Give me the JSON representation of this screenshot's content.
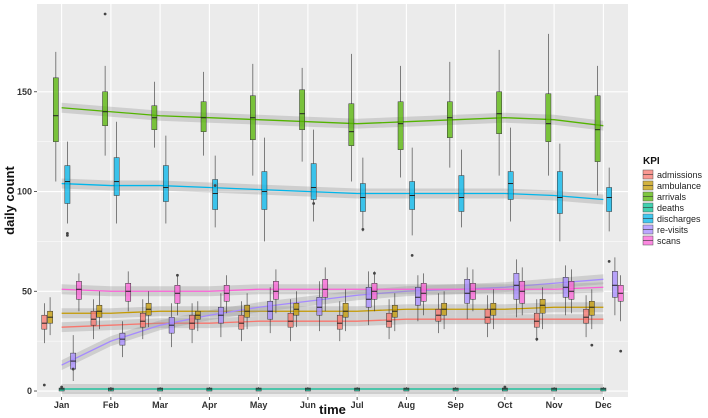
{
  "chart_data": {
    "type": "box",
    "title": "",
    "xlabel": "time",
    "ylabel": "daily count",
    "ylim": [
      -3,
      194
    ],
    "y_ticks": [
      0,
      50,
      100,
      150
    ],
    "categories": [
      "Jan",
      "Feb",
      "Mar",
      "Apr",
      "May",
      "Jun",
      "Jul",
      "Aug",
      "Sep",
      "Oct",
      "Nov",
      "Dec"
    ],
    "legend": {
      "title": "KPI",
      "position": "right"
    },
    "grid": true,
    "series": [
      {
        "name": "admissions",
        "color": "#F8766D",
        "boxes": [
          {
            "q1": 31,
            "median": 34,
            "q3": 38,
            "whisker_low": 24,
            "whisker_high": 44
          },
          {
            "q1": 33,
            "median": 36,
            "q3": 40,
            "whisker_low": 26,
            "whisker_high": 46
          },
          {
            "q1": 32,
            "median": 35,
            "q3": 39,
            "whisker_low": 26,
            "whisker_high": 46
          },
          {
            "q1": 31,
            "median": 34,
            "q3": 38,
            "whisker_low": 24,
            "whisker_high": 44
          },
          {
            "q1": 31,
            "median": 34,
            "q3": 38,
            "whisker_low": 25,
            "whisker_high": 45
          },
          {
            "q1": 32,
            "median": 35,
            "q3": 39,
            "whisker_low": 25,
            "whisker_high": 46
          },
          {
            "q1": 31,
            "median": 34,
            "q3": 38,
            "whisker_low": 25,
            "whisker_high": 45
          },
          {
            "q1": 32,
            "median": 35,
            "q3": 39,
            "whisker_low": 26,
            "whisker_high": 46
          },
          {
            "q1": 35,
            "median": 38,
            "q3": 41,
            "whisker_low": 29,
            "whisker_high": 49
          },
          {
            "q1": 34,
            "median": 37,
            "q3": 41,
            "whisker_low": 27,
            "whisker_high": 48
          },
          {
            "q1": 32,
            "median": 35,
            "q3": 39,
            "whisker_low": 25,
            "whisker_high": 46
          },
          {
            "q1": 34,
            "median": 37,
            "q3": 41,
            "whisker_low": 27,
            "whisker_high": 48
          }
        ],
        "trend": [
          32,
          33,
          34,
          34,
          35,
          35,
          35,
          36,
          36,
          36,
          36,
          36
        ]
      },
      {
        "name": "ambulance",
        "color": "#C49A00",
        "boxes": [
          {
            "q1": 34,
            "median": 37,
            "q3": 40,
            "whisker_low": 28,
            "whisker_high": 47
          },
          {
            "q1": 37,
            "median": 40,
            "q3": 43,
            "whisker_low": 31,
            "whisker_high": 50
          },
          {
            "q1": 38,
            "median": 41,
            "q3": 44,
            "whisker_low": 32,
            "whisker_high": 50
          },
          {
            "q1": 36,
            "median": 38,
            "q3": 40,
            "whisker_low": 30,
            "whisker_high": 45
          },
          {
            "q1": 37,
            "median": 40,
            "q3": 43,
            "whisker_low": 31,
            "whisker_high": 49
          },
          {
            "q1": 38,
            "median": 41,
            "q3": 44,
            "whisker_low": 32,
            "whisker_high": 50
          },
          {
            "q1": 37,
            "median": 40,
            "q3": 44,
            "whisker_low": 30,
            "whisker_high": 51
          },
          {
            "q1": 37,
            "median": 40,
            "q3": 43,
            "whisker_low": 30,
            "whisker_high": 49
          },
          {
            "q1": 38,
            "median": 41,
            "q3": 44,
            "whisker_low": 31,
            "whisker_high": 50
          },
          {
            "q1": 38,
            "median": 41,
            "q3": 44,
            "whisker_low": 31,
            "whisker_high": 51
          },
          {
            "q1": 39,
            "median": 43,
            "q3": 46,
            "whisker_low": 31,
            "whisker_high": 52
          },
          {
            "q1": 38,
            "median": 42,
            "q3": 45,
            "whisker_low": 31,
            "whisker_high": 51
          }
        ],
        "trend": [
          39,
          39,
          40,
          40,
          40,
          40,
          40,
          41,
          41,
          41,
          42,
          42
        ]
      },
      {
        "name": "arrivals",
        "color": "#53B400",
        "boxes": [
          {
            "q1": 125,
            "median": 138,
            "q3": 157,
            "whisker_low": 105,
            "whisker_high": 170
          },
          {
            "q1": 133,
            "median": 140,
            "q3": 150,
            "whisker_low": 118,
            "whisker_high": 163
          },
          {
            "q1": 131,
            "median": 137,
            "q3": 143,
            "whisker_low": 122,
            "whisker_high": 155
          },
          {
            "q1": 130,
            "median": 137,
            "q3": 145,
            "whisker_low": 118,
            "whisker_high": 160
          },
          {
            "q1": 126,
            "median": 137,
            "q3": 148,
            "whisker_low": 108,
            "whisker_high": 164
          },
          {
            "q1": 131,
            "median": 139,
            "q3": 151,
            "whisker_low": 115,
            "whisker_high": 162
          },
          {
            "q1": 123,
            "median": 130,
            "q3": 144,
            "whisker_low": 105,
            "whisker_high": 169
          },
          {
            "q1": 121,
            "median": 134,
            "q3": 145,
            "whisker_low": 107,
            "whisker_high": 163
          },
          {
            "q1": 127,
            "median": 137,
            "q3": 145,
            "whisker_low": 112,
            "whisker_high": 165
          },
          {
            "q1": 129,
            "median": 139,
            "q3": 150,
            "whisker_low": 108,
            "whisker_high": 171
          },
          {
            "q1": 125,
            "median": 134,
            "q3": 149,
            "whisker_low": 108,
            "whisker_high": 179
          },
          {
            "q1": 115,
            "median": 131,
            "q3": 148,
            "whisker_low": 98,
            "whisker_high": 163
          }
        ],
        "trend": [
          142,
          140,
          138,
          137,
          136,
          135,
          134,
          135,
          136,
          137,
          136,
          133
        ]
      },
      {
        "name": "deaths",
        "color": "#00C094",
        "boxes": [
          {
            "q1": 0,
            "median": 1,
            "q3": 1.5,
            "whisker_low": 0,
            "whisker_high": 2
          },
          {
            "q1": 0,
            "median": 1,
            "q3": 1.5,
            "whisker_low": 0,
            "whisker_high": 2
          },
          {
            "q1": 0,
            "median": 1,
            "q3": 1.5,
            "whisker_low": 0,
            "whisker_high": 2
          },
          {
            "q1": 0,
            "median": 1,
            "q3": 1.5,
            "whisker_low": 0,
            "whisker_high": 2
          },
          {
            "q1": 0,
            "median": 1,
            "q3": 1.5,
            "whisker_low": 0,
            "whisker_high": 2
          },
          {
            "q1": 0,
            "median": 1,
            "q3": 1.5,
            "whisker_low": 0,
            "whisker_high": 2
          },
          {
            "q1": 0,
            "median": 1,
            "q3": 1.5,
            "whisker_low": 0,
            "whisker_high": 2
          },
          {
            "q1": 0,
            "median": 1,
            "q3": 1.5,
            "whisker_low": 0,
            "whisker_high": 2
          },
          {
            "q1": 0,
            "median": 1,
            "q3": 1.5,
            "whisker_low": 0,
            "whisker_high": 2
          },
          {
            "q1": 0,
            "median": 1,
            "q3": 1.5,
            "whisker_low": 0,
            "whisker_high": 2
          },
          {
            "q1": 0,
            "median": 1,
            "q3": 1.5,
            "whisker_low": 0,
            "whisker_high": 2
          },
          {
            "q1": 0,
            "median": 1,
            "q3": 1.5,
            "whisker_low": 0,
            "whisker_high": 2
          }
        ],
        "trend": [
          1,
          1,
          1,
          1,
          1,
          1,
          1,
          1,
          1,
          1,
          1,
          1
        ]
      },
      {
        "name": "discharges",
        "color": "#00B6EB",
        "boxes": [
          {
            "q1": 94,
            "median": 105,
            "q3": 113,
            "whisker_low": 84,
            "whisker_high": 125
          },
          {
            "q1": 98,
            "median": 105,
            "q3": 117,
            "whisker_low": 84,
            "whisker_high": 135
          },
          {
            "q1": 95,
            "median": 102,
            "q3": 113,
            "whisker_low": 84,
            "whisker_high": 128
          },
          {
            "q1": 91,
            "median": 99,
            "q3": 106,
            "whisker_low": 82,
            "whisker_high": 118
          },
          {
            "q1": 91,
            "median": 100,
            "q3": 110,
            "whisker_low": 75,
            "whisker_high": 127
          },
          {
            "q1": 96,
            "median": 102,
            "q3": 114,
            "whisker_low": 85,
            "whisker_high": 131
          },
          {
            "q1": 90,
            "median": 97,
            "q3": 104,
            "whisker_low": 80,
            "whisker_high": 117
          },
          {
            "q1": 91,
            "median": 98,
            "q3": 105,
            "whisker_low": 78,
            "whisker_high": 122
          },
          {
            "q1": 90,
            "median": 97,
            "q3": 108,
            "whisker_low": 82,
            "whisker_high": 121
          },
          {
            "q1": 96,
            "median": 104,
            "q3": 110,
            "whisker_low": 85,
            "whisker_high": 132
          },
          {
            "q1": 89,
            "median": 97,
            "q3": 110,
            "whisker_low": 75,
            "whisker_high": 124
          },
          {
            "q1": 90,
            "median": 97,
            "q3": 102,
            "whisker_low": 80,
            "whisker_high": 112
          }
        ],
        "trend": [
          104,
          103,
          103,
          102,
          101,
          100,
          99,
          99,
          99,
          99,
          98,
          96
        ]
      },
      {
        "name": "re-visits",
        "color": "#A58AFF",
        "boxes": [
          {
            "q1": 11,
            "median": 15,
            "q3": 19,
            "whisker_low": 5,
            "whisker_high": 28
          },
          {
            "q1": 23,
            "median": 26,
            "q3": 29,
            "whisker_low": 17,
            "whisker_high": 35
          },
          {
            "q1": 29,
            "median": 33,
            "q3": 37,
            "whisker_low": 22,
            "whisker_high": 44
          },
          {
            "q1": 34,
            "median": 38,
            "q3": 42,
            "whisker_low": 27,
            "whisker_high": 49
          },
          {
            "q1": 36,
            "median": 40,
            "q3": 45,
            "whisker_low": 29,
            "whisker_high": 52
          },
          {
            "q1": 38,
            "median": 42,
            "q3": 47,
            "whisker_low": 30,
            "whisker_high": 55
          },
          {
            "q1": 42,
            "median": 46,
            "q3": 52,
            "whisker_low": 33,
            "whisker_high": 60
          },
          {
            "q1": 43,
            "median": 47,
            "q3": 52,
            "whisker_low": 35,
            "whisker_high": 58
          },
          {
            "q1": 44,
            "median": 49,
            "q3": 56,
            "whisker_low": 36,
            "whisker_high": 62
          },
          {
            "q1": 46,
            "median": 53,
            "q3": 59,
            "whisker_low": 37,
            "whisker_high": 66
          },
          {
            "q1": 47,
            "median": 52,
            "q3": 57,
            "whisker_low": 38,
            "whisker_high": 63
          },
          {
            "q1": 47,
            "median": 53,
            "q3": 60,
            "whisker_low": 38,
            "whisker_high": 67
          }
        ],
        "trend": [
          13,
          25,
          33,
          38,
          42,
          45,
          48,
          50,
          51,
          52,
          54,
          56
        ]
      },
      {
        "name": "scans",
        "color": "#FB61D7",
        "boxes": [
          {
            "q1": 46,
            "median": 51,
            "q3": 55,
            "whisker_low": 40,
            "whisker_high": 59
          },
          {
            "q1": 45,
            "median": 50,
            "q3": 54,
            "whisker_low": 40,
            "whisker_high": 60
          },
          {
            "q1": 44,
            "median": 49,
            "q3": 53,
            "whisker_low": 38,
            "whisker_high": 58
          },
          {
            "q1": 45,
            "median": 49,
            "q3": 53,
            "whisker_low": 39,
            "whisker_high": 58
          },
          {
            "q1": 46,
            "median": 50,
            "q3": 55,
            "whisker_low": 39,
            "whisker_high": 61
          },
          {
            "q1": 47,
            "median": 51,
            "q3": 56,
            "whisker_low": 40,
            "whisker_high": 62
          },
          {
            "q1": 46,
            "median": 50,
            "q3": 54,
            "whisker_low": 40,
            "whisker_high": 60
          },
          {
            "q1": 45,
            "median": 49,
            "q3": 54,
            "whisker_low": 38,
            "whisker_high": 59
          },
          {
            "q1": 46,
            "median": 50,
            "q3": 54,
            "whisker_low": 40,
            "whisker_high": 61
          },
          {
            "q1": 44,
            "median": 50,
            "q3": 55,
            "whisker_low": 38,
            "whisker_high": 62
          },
          {
            "q1": 46,
            "median": 50,
            "q3": 55,
            "whisker_low": 39,
            "whisker_high": 61
          },
          {
            "q1": 45,
            "median": 49,
            "q3": 53,
            "whisker_low": 35,
            "whisker_high": 58
          }
        ],
        "trend": [
          51,
          50,
          50,
          50,
          51,
          51,
          51,
          51,
          51,
          51,
          51,
          52
        ]
      }
    ],
    "outliers": [
      {
        "series": "arrivals",
        "month": "Feb",
        "value": 189
      },
      {
        "series": "discharges",
        "month": "Jan",
        "value": 79
      },
      {
        "series": "discharges",
        "month": "Jan",
        "value": 78
      },
      {
        "series": "discharges",
        "month": "Jun",
        "value": 94
      },
      {
        "series": "discharges",
        "month": "Jul",
        "value": 81
      },
      {
        "series": "discharges",
        "month": "Aug",
        "value": 68
      },
      {
        "series": "discharges",
        "month": "Dec",
        "value": 65
      },
      {
        "series": "discharges",
        "month": "Apr",
        "value": 103
      },
      {
        "series": "admissions",
        "month": "Nov",
        "value": 26
      },
      {
        "series": "ambulance",
        "month": "Dec",
        "value": 23
      },
      {
        "series": "scans",
        "month": "Dec",
        "value": 20
      },
      {
        "series": "scans",
        "month": "Mar",
        "value": 58
      },
      {
        "series": "scans",
        "month": "Jul",
        "value": 59
      },
      {
        "series": "re-visits",
        "month": "Jan",
        "value": 11
      },
      {
        "series": "admissions",
        "month": "Jan",
        "value": 3
      },
      {
        "series": "deaths",
        "month": "Jan",
        "value": 2
      },
      {
        "series": "deaths",
        "month": "Feb",
        "value": 1
      },
      {
        "series": "deaths",
        "month": "Oct",
        "value": 2
      }
    ]
  }
}
